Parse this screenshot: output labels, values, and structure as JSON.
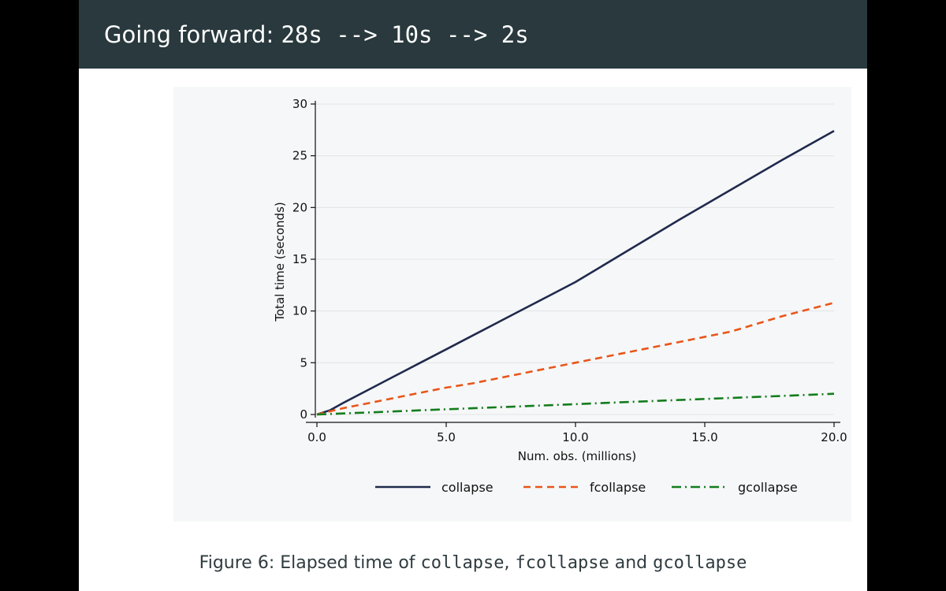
{
  "slide": {
    "title_text": "Going forward: ",
    "title_code": "28s --> 10s --> 2s",
    "caption": {
      "label": "Figure 6:",
      "text": " Elapsed time of ",
      "code1": "collapse",
      "sep1": ", ",
      "code2": "fcollapse",
      "sep2": " and ",
      "code3": "gcollapse"
    }
  },
  "colors": {
    "title_bar": "#29393d",
    "panel": "#f6f7f8",
    "collapse": "#1f2a4d",
    "fcollapse": "#e8561a",
    "gcollapse": "#137d1d"
  },
  "chart_data": {
    "type": "line",
    "title": "",
    "xlabel": "Num. obs. (millions)",
    "ylabel": "Total time (seconds)",
    "xlim": [
      0,
      20
    ],
    "ylim": [
      0,
      30
    ],
    "xticks": [
      0,
      5,
      10,
      15,
      20
    ],
    "xtick_labels": [
      "0.0",
      "5.0",
      "10.0",
      "15.0",
      "20.0"
    ],
    "yticks": [
      0,
      5,
      10,
      15,
      20,
      25,
      30
    ],
    "ytick_labels": [
      "0",
      "5",
      "10",
      "15",
      "20",
      "25",
      "30"
    ],
    "grid": "horizontal",
    "legend_position": "bottom",
    "series": [
      {
        "name": "collapse",
        "style": "solid",
        "color": "#1f2a4d",
        "x": [
          0,
          0.5,
          1,
          2,
          3,
          4,
          5,
          6,
          7,
          8,
          9,
          10,
          12,
          14,
          16,
          18,
          20
        ],
        "y": [
          0,
          0.4,
          1.1,
          2.4,
          3.7,
          5.0,
          6.3,
          7.6,
          8.9,
          10.2,
          11.5,
          12.8,
          15.8,
          18.8,
          21.7,
          24.6,
          27.4
        ]
      },
      {
        "name": "fcollapse",
        "style": "dashed",
        "color": "#e8561a",
        "x": [
          0,
          1,
          2,
          3,
          4,
          5,
          6,
          8,
          10,
          12,
          14,
          16,
          18,
          20
        ],
        "y": [
          0,
          0.6,
          1.1,
          1.6,
          2.1,
          2.6,
          3.0,
          4.0,
          5.0,
          6.0,
          7.0,
          8.0,
          9.5,
          10.8
        ]
      },
      {
        "name": "gcollapse",
        "style": "dashdot",
        "color": "#137d1d",
        "x": [
          0,
          1,
          2,
          3,
          4,
          5,
          6,
          8,
          10,
          12,
          14,
          16,
          18,
          20
        ],
        "y": [
          0,
          0.1,
          0.2,
          0.3,
          0.4,
          0.5,
          0.6,
          0.8,
          1.0,
          1.2,
          1.4,
          1.6,
          1.8,
          2.0
        ]
      }
    ]
  }
}
